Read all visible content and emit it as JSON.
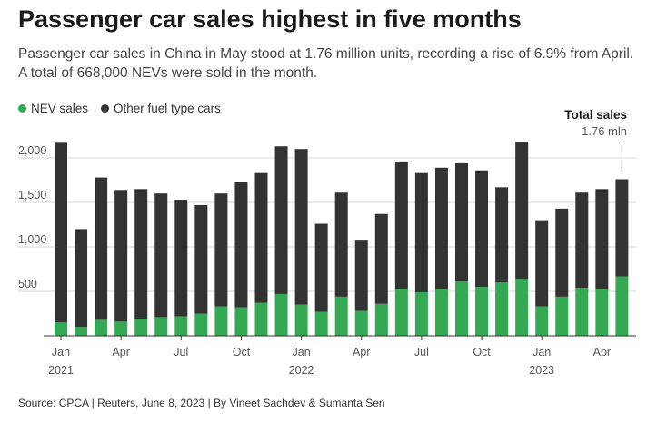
{
  "title": "Passenger car sales highest in five months",
  "subtitle": "Passenger car sales in China in May stood at 1.76 million units, recording a rise of 6.9% from April. A total of 668,000 NEVs were sold in the month.",
  "legend": [
    {
      "label": "NEV sales",
      "color": "#35a853"
    },
    {
      "label": "Other fuel type cars",
      "color": "#333333"
    }
  ],
  "source": "Source: CPCA | Reuters, June 8, 2023 | By Vineet Sachdev & Sumanta Sen",
  "annotation": {
    "title": "Total sales",
    "value": "1.76 mln"
  },
  "chart_data": {
    "type": "bar",
    "stacked": true,
    "title": "Passenger car sales highest in five months",
    "ylabel": "",
    "xlabel": "",
    "ylim": [
      0,
      2000
    ],
    "yticks": [
      500,
      1000,
      1500,
      2000
    ],
    "ytick_labels": [
      "500",
      "1,000",
      "1,500",
      "2,000"
    ],
    "categories": [
      "2021-01",
      "2021-02",
      "2021-03",
      "2021-04",
      "2021-05",
      "2021-06",
      "2021-07",
      "2021-08",
      "2021-09",
      "2021-10",
      "2021-11",
      "2021-12",
      "2022-01",
      "2022-02",
      "2022-03",
      "2022-04",
      "2022-05",
      "2022-06",
      "2022-07",
      "2022-08",
      "2022-09",
      "2022-10",
      "2022-11",
      "2022-12",
      "2023-01",
      "2023-02",
      "2023-03",
      "2023-04",
      "2023-05"
    ],
    "xtick_labels": [
      {
        "index": 0,
        "label": "Jan",
        "year": "2021"
      },
      {
        "index": 3,
        "label": "Apr",
        "year": ""
      },
      {
        "index": 6,
        "label": "Jul",
        "year": ""
      },
      {
        "index": 9,
        "label": "Oct",
        "year": ""
      },
      {
        "index": 12,
        "label": "Jan",
        "year": "2022"
      },
      {
        "index": 15,
        "label": "Apr",
        "year": ""
      },
      {
        "index": 18,
        "label": "Jul",
        "year": ""
      },
      {
        "index": 21,
        "label": "Oct",
        "year": ""
      },
      {
        "index": 24,
        "label": "Jan",
        "year": "2023"
      },
      {
        "index": 27,
        "label": "Apr",
        "year": ""
      }
    ],
    "series": [
      {
        "name": "NEV sales",
        "color": "#35a853",
        "values": [
          150,
          100,
          180,
          160,
          190,
          210,
          220,
          250,
          330,
          320,
          370,
          470,
          350,
          270,
          440,
          280,
          360,
          530,
          490,
          530,
          610,
          550,
          600,
          640,
          330,
          440,
          540,
          530,
          668
        ]
      },
      {
        "name": "Other fuel type cars",
        "color": "#333333",
        "values": [
          2020,
          1100,
          1600,
          1480,
          1460,
          1390,
          1310,
          1220,
          1270,
          1410,
          1460,
          1660,
          1750,
          990,
          1170,
          790,
          1010,
          1430,
          1340,
          1360,
          1330,
          1310,
          1070,
          1540,
          970,
          990,
          1070,
          1120,
          1092
        ]
      }
    ],
    "totals": [
      2170,
      1200,
      1780,
      1640,
      1650,
      1600,
      1530,
      1470,
      1600,
      1730,
      1830,
      2130,
      2100,
      1260,
      1610,
      1070,
      1370,
      1960,
      1830,
      1890,
      1940,
      1860,
      1670,
      2180,
      1300,
      1430,
      1610,
      1650,
      1760
    ]
  }
}
